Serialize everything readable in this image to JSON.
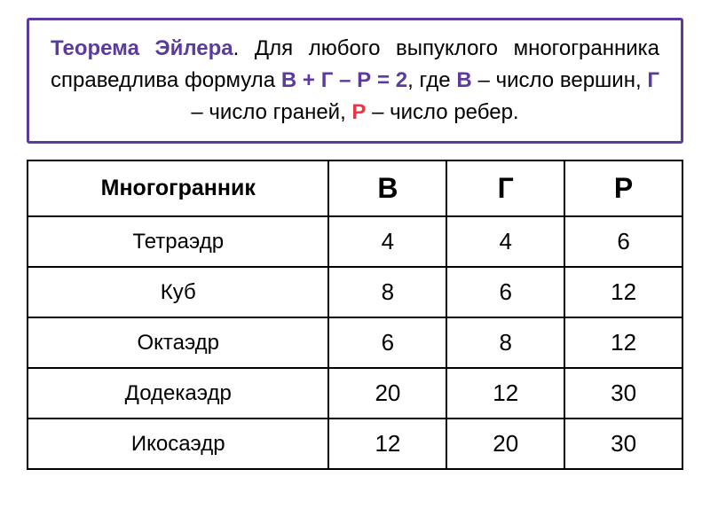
{
  "theorem": {
    "title": "Теорема Эйлера",
    "text_part1": ". Для любого выпуклого многогранника справедлива формула ",
    "formula": "В + Г – Р = 2",
    "text_part2": ", где ",
    "var_v_label": "В",
    "text_part3": " – число вершин, ",
    "var_g_label": "Г",
    "text_part4": " – число граней, ",
    "var_p_label": "Р",
    "text_part5": " – число ребер."
  },
  "table": {
    "headers": {
      "name": "Многогранник",
      "v": "В",
      "g": "Г",
      "p": "Р"
    },
    "rows": [
      {
        "name": "Тетраэдр",
        "v": 4,
        "g": 4,
        "p": 6
      },
      {
        "name": "Куб",
        "v": 8,
        "g": 6,
        "p": 12
      },
      {
        "name": "Октаэдр",
        "v": 6,
        "g": 8,
        "p": 12
      },
      {
        "name": "Додекаэдр",
        "v": 20,
        "g": 12,
        "p": 30
      },
      {
        "name": "Икосаэдр",
        "v": 12,
        "g": 20,
        "p": 30
      }
    ]
  },
  "styling": {
    "theorem_border_color": "#5b3b9e",
    "theorem_title_color": "#5b3b9e",
    "var_p_color": "#e63946",
    "table_border_color": "#000000",
    "background_color": "#ffffff",
    "text_color": "#000000",
    "theorem_fontsize": 24,
    "table_header_fontsize": 26,
    "table_cell_fontsize": 26
  }
}
